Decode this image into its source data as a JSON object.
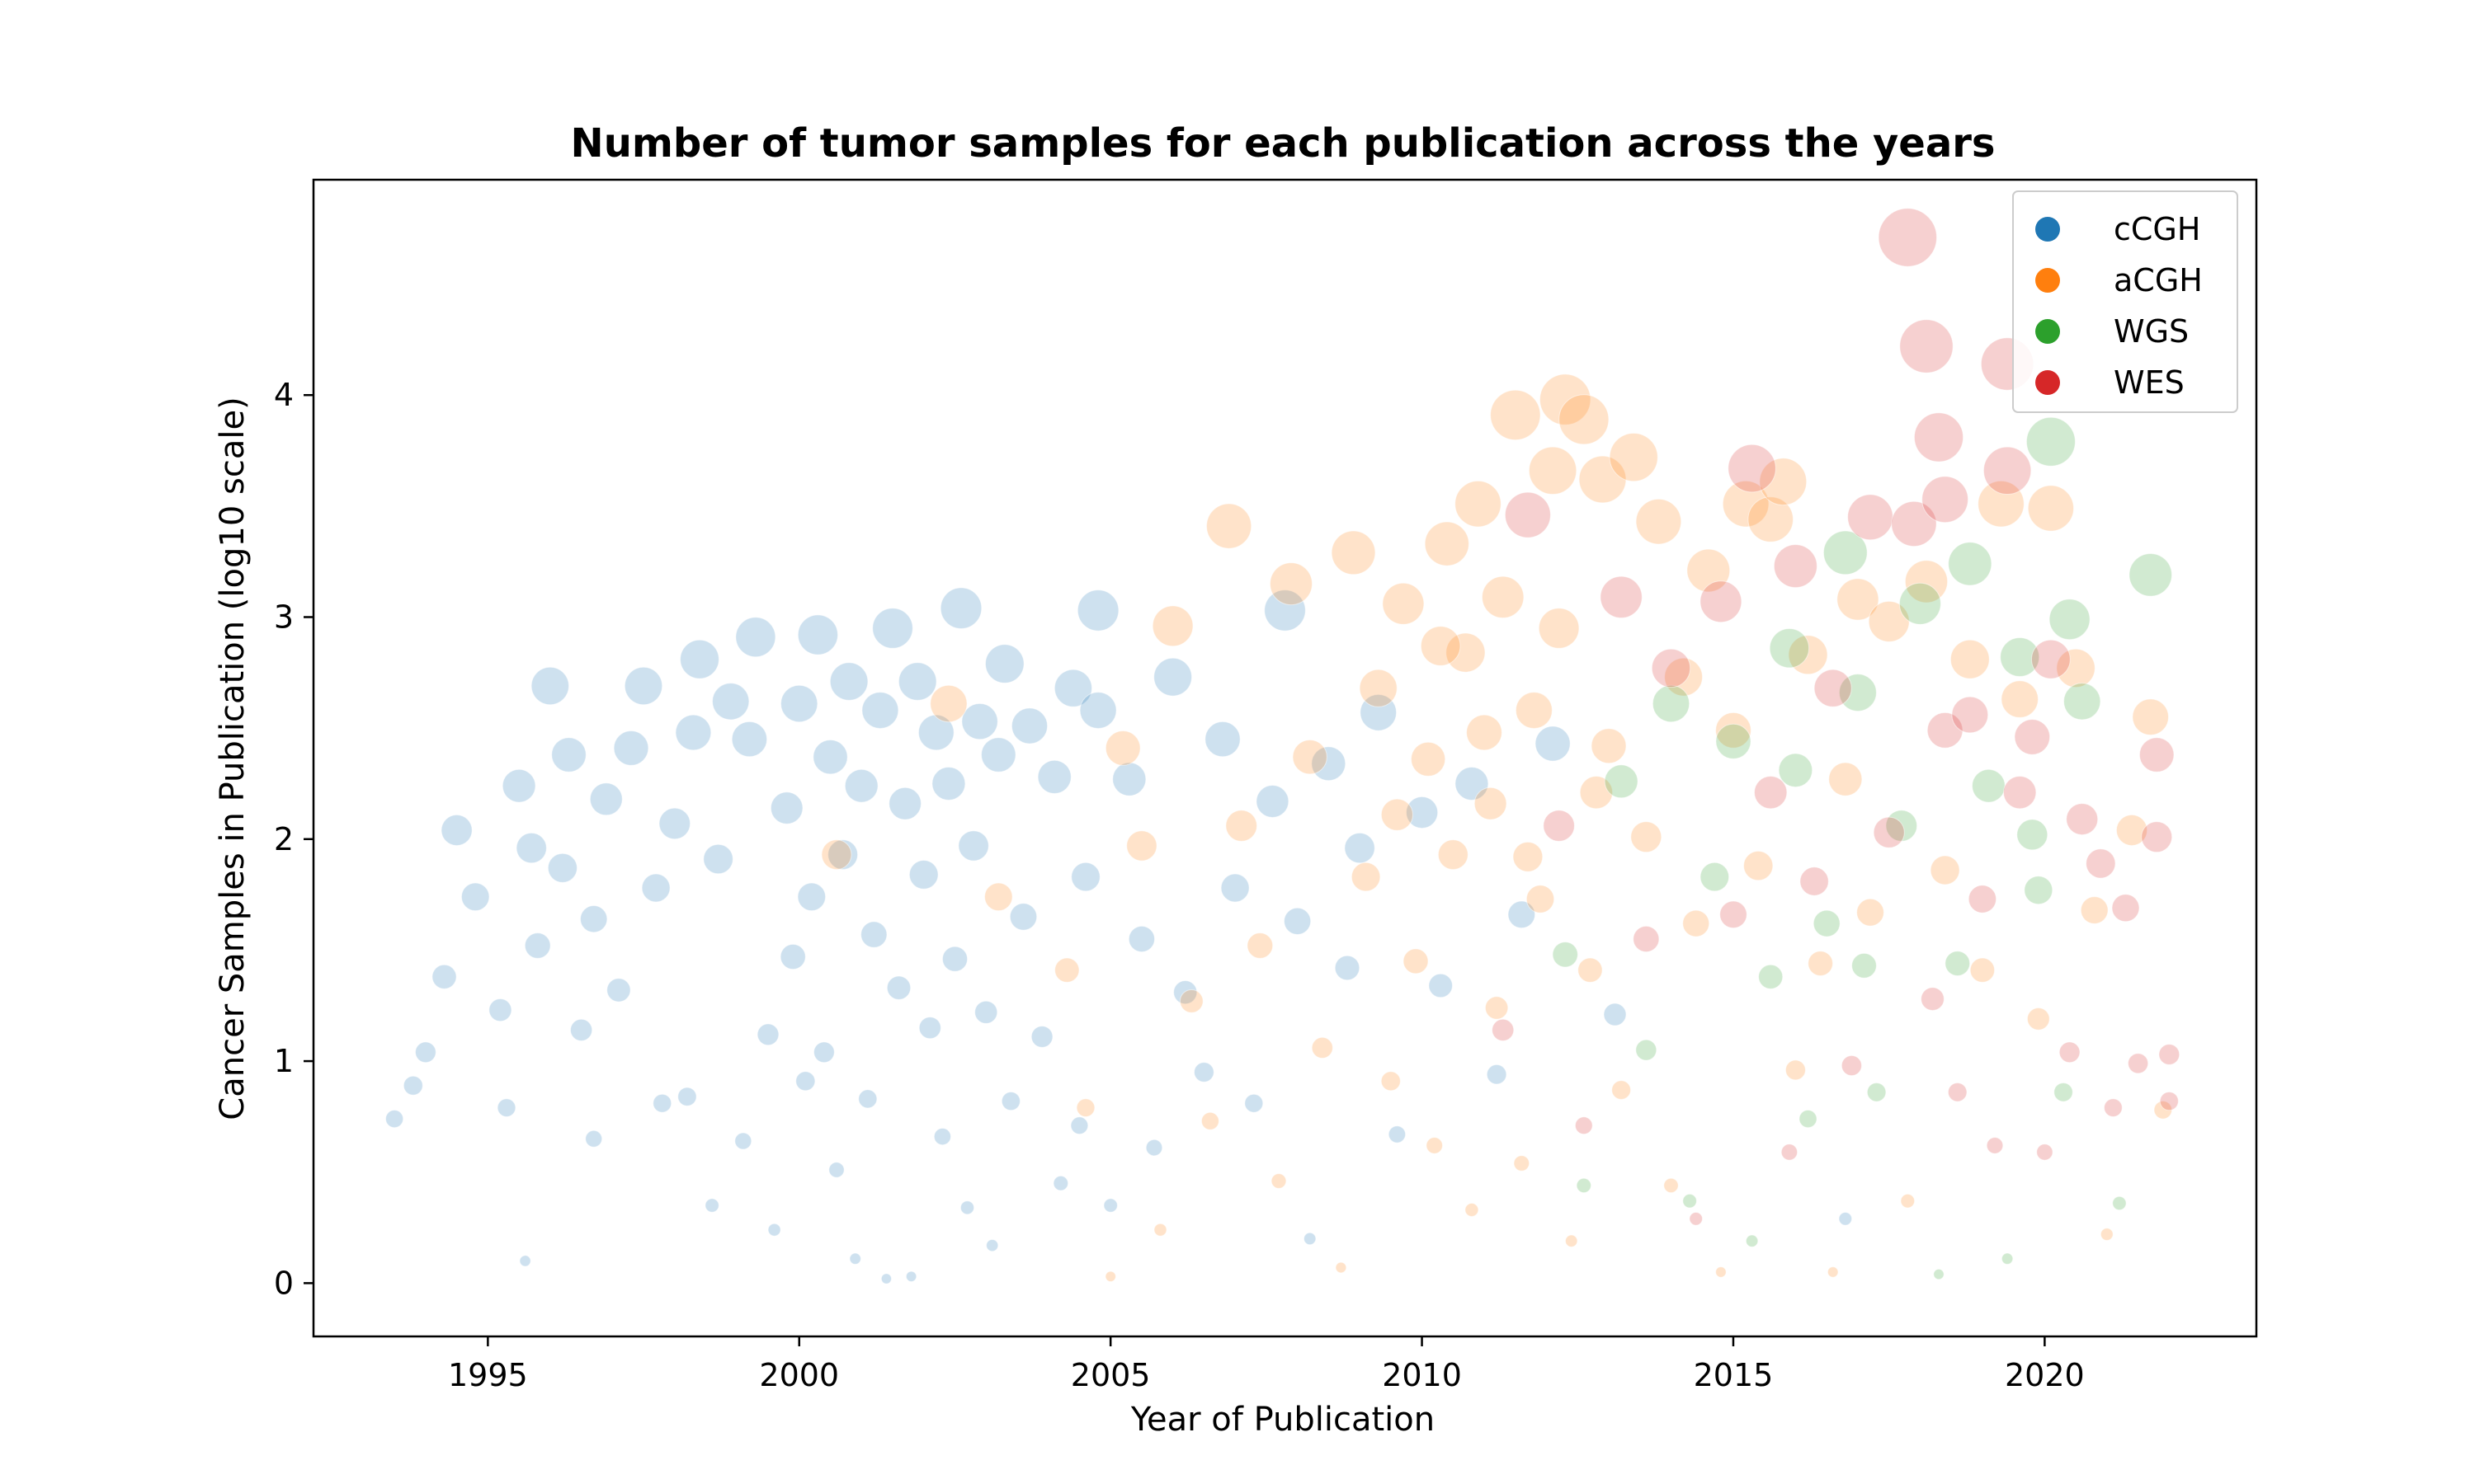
{
  "chart_data": {
    "type": "scatter",
    "title": "Number of tumor samples for each publication across the years",
    "xlabel": "Year of Publication",
    "ylabel": "Cancer Samples in Publication (log10 scale)",
    "xlim": [
      1992.2,
      2023.4
    ],
    "ylim": [
      -0.24,
      4.97
    ],
    "xticks": [
      1995,
      2000,
      2005,
      2010,
      2015,
      2020
    ],
    "yticks": [
      0,
      1,
      2,
      3,
      4
    ],
    "legend_position": "top-right",
    "marker_size_encodes": "number of samples",
    "series": [
      {
        "name": "cCGH",
        "color": "#1f77b4",
        "points": [
          [
            1993.5,
            0.74
          ],
          [
            1993.8,
            0.89
          ],
          [
            1994.0,
            1.04
          ],
          [
            1994.3,
            1.38
          ],
          [
            1994.5,
            2.04
          ],
          [
            1994.8,
            1.74
          ],
          [
            1995.2,
            1.23
          ],
          [
            1995.3,
            0.79
          ],
          [
            1995.5,
            2.24
          ],
          [
            1995.6,
            0.1
          ],
          [
            1995.7,
            1.96
          ],
          [
            1995.8,
            1.52
          ],
          [
            1996.0,
            2.69
          ],
          [
            1996.2,
            1.87
          ],
          [
            1996.3,
            2.38
          ],
          [
            1996.5,
            1.14
          ],
          [
            1996.7,
            1.64
          ],
          [
            1996.7,
            0.65
          ],
          [
            1996.9,
            2.18
          ],
          [
            1997.1,
            1.32
          ],
          [
            1997.3,
            2.41
          ],
          [
            1997.5,
            2.69
          ],
          [
            1997.7,
            1.78
          ],
          [
            1997.8,
            0.81
          ],
          [
            1998.0,
            2.07
          ],
          [
            1998.2,
            0.84
          ],
          [
            1998.3,
            2.48
          ],
          [
            1998.4,
            2.81
          ],
          [
            1998.6,
            0.35
          ],
          [
            1998.7,
            1.91
          ],
          [
            1998.9,
            2.62
          ],
          [
            1999.1,
            0.64
          ],
          [
            1999.2,
            2.45
          ],
          [
            1999.3,
            2.91
          ],
          [
            1999.5,
            1.12
          ],
          [
            1999.6,
            0.24
          ],
          [
            1999.8,
            2.14
          ],
          [
            1999.9,
            1.47
          ],
          [
            2000.0,
            2.61
          ],
          [
            2000.1,
            0.91
          ],
          [
            2000.2,
            1.74
          ],
          [
            2000.3,
            2.92
          ],
          [
            2000.4,
            1.04
          ],
          [
            2000.5,
            2.37
          ],
          [
            2000.6,
            0.51
          ],
          [
            2000.7,
            1.93
          ],
          [
            2000.8,
            2.71
          ],
          [
            2000.9,
            0.11
          ],
          [
            2001.0,
            2.24
          ],
          [
            2001.1,
            0.83
          ],
          [
            2001.2,
            1.57
          ],
          [
            2001.3,
            2.58
          ],
          [
            2001.4,
            0.02
          ],
          [
            2001.5,
            2.95
          ],
          [
            2001.6,
            1.33
          ],
          [
            2001.7,
            2.16
          ],
          [
            2001.8,
            0.03
          ],
          [
            2001.9,
            2.71
          ],
          [
            2002.0,
            1.84
          ],
          [
            2002.1,
            1.15
          ],
          [
            2002.2,
            2.48
          ],
          [
            2002.3,
            0.66
          ],
          [
            2002.4,
            2.25
          ],
          [
            2002.5,
            1.46
          ],
          [
            2002.6,
            3.04
          ],
          [
            2002.7,
            0.34
          ],
          [
            2002.8,
            1.97
          ],
          [
            2002.9,
            2.53
          ],
          [
            2003.0,
            1.22
          ],
          [
            2003.1,
            0.17
          ],
          [
            2003.2,
            2.38
          ],
          [
            2003.3,
            2.79
          ],
          [
            2003.4,
            0.82
          ],
          [
            2003.6,
            1.65
          ],
          [
            2003.7,
            2.51
          ],
          [
            2003.9,
            1.11
          ],
          [
            2004.1,
            2.28
          ],
          [
            2004.2,
            0.45
          ],
          [
            2004.4,
            2.68
          ],
          [
            2004.5,
            0.71
          ],
          [
            2004.6,
            1.83
          ],
          [
            2004.8,
            2.58
          ],
          [
            2004.8,
            3.03
          ],
          [
            2005.0,
            0.35
          ],
          [
            2005.3,
            2.27
          ],
          [
            2005.5,
            1.55
          ],
          [
            2005.7,
            0.61
          ],
          [
            2006.0,
            2.73
          ],
          [
            2006.2,
            1.31
          ],
          [
            2006.5,
            0.95
          ],
          [
            2006.8,
            2.45
          ],
          [
            2007.0,
            1.78
          ],
          [
            2007.3,
            0.81
          ],
          [
            2007.6,
            2.17
          ],
          [
            2007.8,
            3.03
          ],
          [
            2008.0,
            1.63
          ],
          [
            2008.2,
            0.2
          ],
          [
            2008.5,
            2.34
          ],
          [
            2008.8,
            1.42
          ],
          [
            2009.0,
            1.96
          ],
          [
            2009.3,
            2.57
          ],
          [
            2009.6,
            0.67
          ],
          [
            2010.0,
            2.12
          ],
          [
            2010.3,
            1.34
          ],
          [
            2010.8,
            2.25
          ],
          [
            2011.2,
            0.94
          ],
          [
            2011.6,
            1.66
          ],
          [
            2012.1,
            2.43
          ],
          [
            2013.1,
            1.21
          ],
          [
            2016.8,
            0.29
          ]
        ]
      },
      {
        "name": "aCGH",
        "color": "#ff7f0e",
        "points": [
          [
            2000.6,
            1.93
          ],
          [
            2002.4,
            2.61
          ],
          [
            2003.2,
            1.74
          ],
          [
            2004.3,
            1.41
          ],
          [
            2004.6,
            0.79
          ],
          [
            2005.0,
            0.03
          ],
          [
            2005.2,
            2.41
          ],
          [
            2005.5,
            1.97
          ],
          [
            2005.8,
            0.24
          ],
          [
            2006.0,
            2.96
          ],
          [
            2006.3,
            1.27
          ],
          [
            2006.6,
            0.73
          ],
          [
            2006.9,
            3.41
          ],
          [
            2007.1,
            2.06
          ],
          [
            2007.4,
            1.52
          ],
          [
            2007.7,
            0.46
          ],
          [
            2007.9,
            3.15
          ],
          [
            2008.2,
            2.37
          ],
          [
            2008.4,
            1.06
          ],
          [
            2008.7,
            0.07
          ],
          [
            2008.9,
            3.29
          ],
          [
            2009.1,
            1.83
          ],
          [
            2009.3,
            2.68
          ],
          [
            2009.5,
            0.91
          ],
          [
            2009.7,
            3.06
          ],
          [
            2009.9,
            1.45
          ],
          [
            2010.1,
            2.36
          ],
          [
            2010.2,
            0.62
          ],
          [
            2010.4,
            3.33
          ],
          [
            2010.5,
            1.93
          ],
          [
            2010.7,
            2.84
          ],
          [
            2010.8,
            0.33
          ],
          [
            2010.9,
            3.51
          ],
          [
            2011.1,
            2.16
          ],
          [
            2011.2,
            1.24
          ],
          [
            2011.3,
            3.09
          ],
          [
            2011.5,
            3.91
          ],
          [
            2011.6,
            0.54
          ],
          [
            2011.8,
            2.58
          ],
          [
            2011.9,
            1.73
          ],
          [
            2012.1,
            3.66
          ],
          [
            2012.2,
            2.95
          ],
          [
            2012.3,
            3.98
          ],
          [
            2012.4,
            0.19
          ],
          [
            2012.6,
            3.89
          ],
          [
            2012.7,
            1.41
          ],
          [
            2012.9,
            3.62
          ],
          [
            2013.0,
            2.42
          ],
          [
            2013.2,
            0.87
          ],
          [
            2013.4,
            3.72
          ],
          [
            2013.6,
            2.01
          ],
          [
            2013.8,
            3.43
          ],
          [
            2014.0,
            0.44
          ],
          [
            2014.2,
            2.73
          ],
          [
            2014.4,
            1.62
          ],
          [
            2014.6,
            3.21
          ],
          [
            2014.8,
            0.05
          ],
          [
            2015.0,
            2.49
          ],
          [
            2015.2,
            3.51
          ],
          [
            2015.4,
            1.88
          ],
          [
            2015.6,
            3.44
          ],
          [
            2015.8,
            3.61
          ],
          [
            2016.0,
            0.96
          ],
          [
            2016.2,
            2.83
          ],
          [
            2016.4,
            1.44
          ],
          [
            2016.6,
            0.05
          ],
          [
            2016.8,
            2.27
          ],
          [
            2017.0,
            3.08
          ],
          [
            2017.2,
            1.67
          ],
          [
            2017.5,
            2.98
          ],
          [
            2017.8,
            0.37
          ],
          [
            2018.1,
            3.16
          ],
          [
            2018.4,
            1.86
          ],
          [
            2018.8,
            2.81
          ],
          [
            2019.0,
            1.41
          ],
          [
            2019.3,
            3.51
          ],
          [
            2019.6,
            2.63
          ],
          [
            2019.9,
            1.19
          ],
          [
            2020.1,
            3.49
          ],
          [
            2020.5,
            2.77
          ],
          [
            2020.8,
            1.68
          ],
          [
            2021.0,
            0.22
          ],
          [
            2021.4,
            2.04
          ],
          [
            2021.7,
            2.55
          ],
          [
            2021.9,
            0.78
          ],
          [
            2011.0,
            2.48
          ],
          [
            2010.3,
            2.87
          ],
          [
            2012.8,
            2.21
          ],
          [
            2009.6,
            2.11
          ],
          [
            2011.7,
            1.92
          ]
        ]
      },
      {
        "name": "WGS",
        "color": "#2ca02c",
        "points": [
          [
            2012.3,
            1.48
          ],
          [
            2012.6,
            0.44
          ],
          [
            2013.2,
            2.26
          ],
          [
            2013.6,
            1.05
          ],
          [
            2014.0,
            2.61
          ],
          [
            2014.3,
            0.37
          ],
          [
            2014.7,
            1.83
          ],
          [
            2015.0,
            2.44
          ],
          [
            2015.3,
            0.19
          ],
          [
            2015.6,
            1.38
          ],
          [
            2015.9,
            2.86
          ],
          [
            2016.2,
            0.74
          ],
          [
            2016.5,
            1.62
          ],
          [
            2016.8,
            3.29
          ],
          [
            2017.0,
            2.66
          ],
          [
            2017.3,
            0.86
          ],
          [
            2017.7,
            2.06
          ],
          [
            2018.0,
            3.06
          ],
          [
            2018.3,
            0.04
          ],
          [
            2018.6,
            1.44
          ],
          [
            2018.8,
            3.24
          ],
          [
            2019.1,
            2.24
          ],
          [
            2019.4,
            0.11
          ],
          [
            2019.6,
            2.82
          ],
          [
            2019.9,
            1.77
          ],
          [
            2020.1,
            3.79
          ],
          [
            2020.3,
            0.86
          ],
          [
            2020.4,
            2.99
          ],
          [
            2020.6,
            2.62
          ],
          [
            2021.2,
            0.36
          ],
          [
            2021.7,
            3.19
          ],
          [
            2019.8,
            2.02
          ],
          [
            2017.1,
            1.43
          ],
          [
            2016.0,
            2.31
          ]
        ]
      },
      {
        "name": "WES",
        "color": "#d62728",
        "points": [
          [
            2011.3,
            1.14
          ],
          [
            2011.7,
            3.46
          ],
          [
            2012.2,
            2.06
          ],
          [
            2012.6,
            0.71
          ],
          [
            2013.2,
            3.09
          ],
          [
            2013.6,
            1.55
          ],
          [
            2014.0,
            2.77
          ],
          [
            2014.4,
            0.29
          ],
          [
            2014.8,
            3.07
          ],
          [
            2015.0,
            1.66
          ],
          [
            2015.3,
            3.67
          ],
          [
            2015.6,
            2.21
          ],
          [
            2015.9,
            0.59
          ],
          [
            2016.0,
            3.23
          ],
          [
            2016.3,
            1.81
          ],
          [
            2016.6,
            2.68
          ],
          [
            2016.9,
            0.98
          ],
          [
            2017.2,
            3.45
          ],
          [
            2017.5,
            2.03
          ],
          [
            2017.8,
            4.71
          ],
          [
            2017.9,
            3.42
          ],
          [
            2018.1,
            4.22
          ],
          [
            2018.2,
            1.28
          ],
          [
            2018.3,
            3.81
          ],
          [
            2018.4,
            2.49
          ],
          [
            2018.4,
            3.53
          ],
          [
            2018.6,
            0.86
          ],
          [
            2018.8,
            2.56
          ],
          [
            2019.0,
            1.73
          ],
          [
            2019.2,
            0.62
          ],
          [
            2019.4,
            4.14
          ],
          [
            2019.4,
            3.66
          ],
          [
            2019.6,
            2.21
          ],
          [
            2019.8,
            2.46
          ],
          [
            2020.0,
            0.59
          ],
          [
            2020.1,
            2.81
          ],
          [
            2020.4,
            1.04
          ],
          [
            2020.6,
            2.09
          ],
          [
            2020.9,
            1.89
          ],
          [
            2021.1,
            0.79
          ],
          [
            2021.3,
            1.69
          ],
          [
            2021.5,
            0.99
          ],
          [
            2021.8,
            2.38
          ],
          [
            2021.8,
            2.01
          ],
          [
            2022.0,
            1.03
          ],
          [
            2022.0,
            0.82
          ]
        ]
      }
    ]
  }
}
